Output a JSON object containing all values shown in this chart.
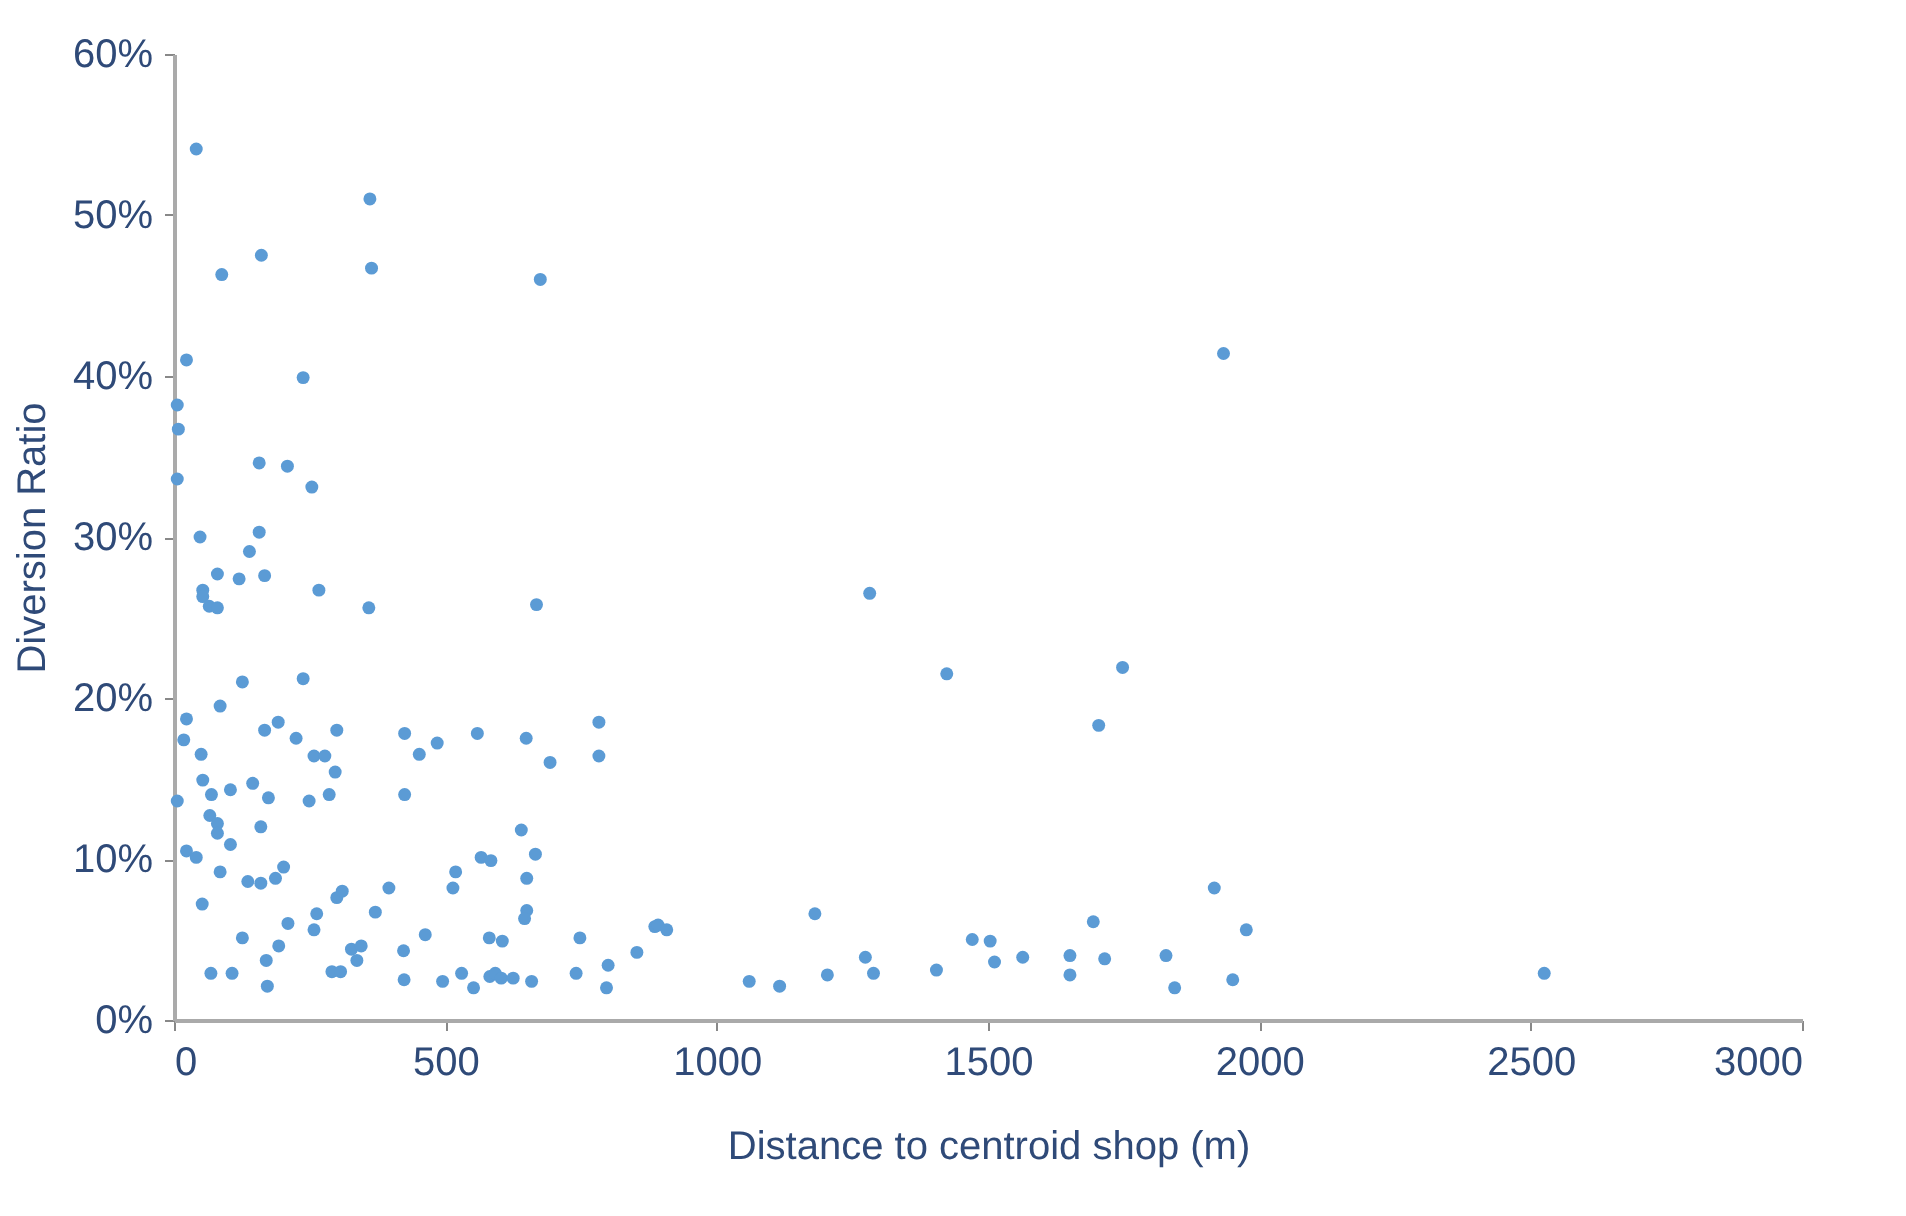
{
  "chart_data": {
    "type": "scatter",
    "xlabel": "Distance to centroid shop (m)",
    "ylabel": "Diversion Ratio",
    "xlim": [
      0,
      3000
    ],
    "xticks": [
      0,
      500,
      1000,
      1500,
      2000,
      2500,
      3000
    ],
    "ylim": [
      0,
      60
    ],
    "yticks": [
      {
        "value": 0,
        "label": "0%"
      },
      {
        "value": 10,
        "label": "10%"
      },
      {
        "value": 20,
        "label": "20%"
      },
      {
        "value": 30,
        "label": "30%"
      },
      {
        "value": 40,
        "label": "40%"
      },
      {
        "value": 50,
        "label": "50%"
      },
      {
        "value": 60,
        "label": "60%"
      }
    ],
    "grid": false,
    "marker": "circle",
    "series": [
      {
        "color": "#5b9bd5",
        "x": [
          41,
          361,
          161,
          88,
          364,
          675,
          23,
          238,
          6,
          8,
          6,
          157,
          209,
          254,
          48,
          157,
          139,
          80,
          120,
          167,
          267,
          53,
          53,
          65,
          80,
          359,
          668,
          126,
          238,
          85,
          23,
          167,
          192,
          300,
          425,
          559,
          783,
          18,
          225,
          649,
          452,
          485,
          50,
          258,
          278,
          783,
          693,
          297,
          53,
          145,
          69,
          104,
          174,
          249,
          286,
          425,
          6,
          66,
          80,
          80,
          160,
          104,
          640,
          23,
          41,
          85,
          136,
          160,
          187,
          202,
          666,
          566,
          584,
          519,
          514,
          650,
          300,
          310,
          396,
          52,
          650,
          646,
          371,
          263,
          210,
          258,
          463,
          126,
          193,
          327,
          345,
          337,
          423,
          581,
          605,
          748,
          853,
          886,
          170,
          68,
          107,
          172,
          291,
          307,
          424,
          495,
          530,
          552,
          582,
          592,
          603,
          625,
          659,
          741,
          800,
          797,
          892,
          908,
          1282,
          1424,
          1748,
          1704,
          1060,
          1116,
          1181,
          1204,
          1274,
          1289,
          1405,
          1471,
          1504,
          1512,
          1564,
          1651,
          1651,
          1694,
          1715,
          1917,
          1976,
          1828,
          1844,
          1951,
          2525,
          1934
        ],
        "values": [
          54.1,
          51.0,
          47.5,
          46.3,
          46.7,
          46.0,
          41.0,
          39.9,
          38.2,
          36.7,
          33.6,
          34.6,
          34.4,
          33.1,
          30.0,
          30.3,
          29.1,
          27.7,
          27.4,
          27.6,
          26.7,
          26.7,
          26.3,
          25.7,
          25.6,
          25.6,
          25.8,
          21.0,
          21.2,
          19.5,
          18.7,
          18.0,
          18.5,
          18.0,
          17.8,
          17.8,
          18.5,
          17.4,
          17.5,
          17.5,
          16.5,
          17.2,
          16.5,
          16.4,
          16.4,
          16.4,
          16.0,
          15.4,
          14.9,
          14.7,
          14.0,
          14.3,
          13.8,
          13.6,
          14.0,
          14.0,
          13.6,
          12.7,
          12.2,
          11.6,
          12.0,
          10.9,
          11.8,
          10.5,
          10.1,
          9.2,
          8.6,
          8.5,
          8.8,
          9.5,
          10.3,
          10.1,
          9.9,
          9.2,
          8.2,
          8.8,
          7.6,
          8.0,
          8.2,
          7.2,
          6.8,
          6.3,
          6.7,
          6.6,
          6.0,
          5.6,
          5.3,
          5.1,
          4.6,
          4.4,
          4.6,
          3.7,
          4.3,
          5.1,
          4.9,
          5.1,
          4.2,
          5.8,
          3.7,
          2.9,
          2.9,
          2.1,
          3.0,
          3.0,
          2.5,
          2.4,
          2.9,
          2.0,
          2.7,
          2.9,
          2.6,
          2.6,
          2.4,
          2.9,
          3.4,
          2.0,
          5.9,
          5.6,
          26.5,
          21.5,
          21.9,
          18.3,
          2.4,
          2.1,
          6.6,
          2.8,
          3.9,
          2.9,
          3.1,
          5.0,
          4.9,
          3.6,
          3.9,
          4.0,
          2.8,
          6.1,
          3.8,
          8.2,
          5.6,
          4.0,
          2.0,
          2.5,
          2.9,
          41.4
        ]
      }
    ]
  }
}
